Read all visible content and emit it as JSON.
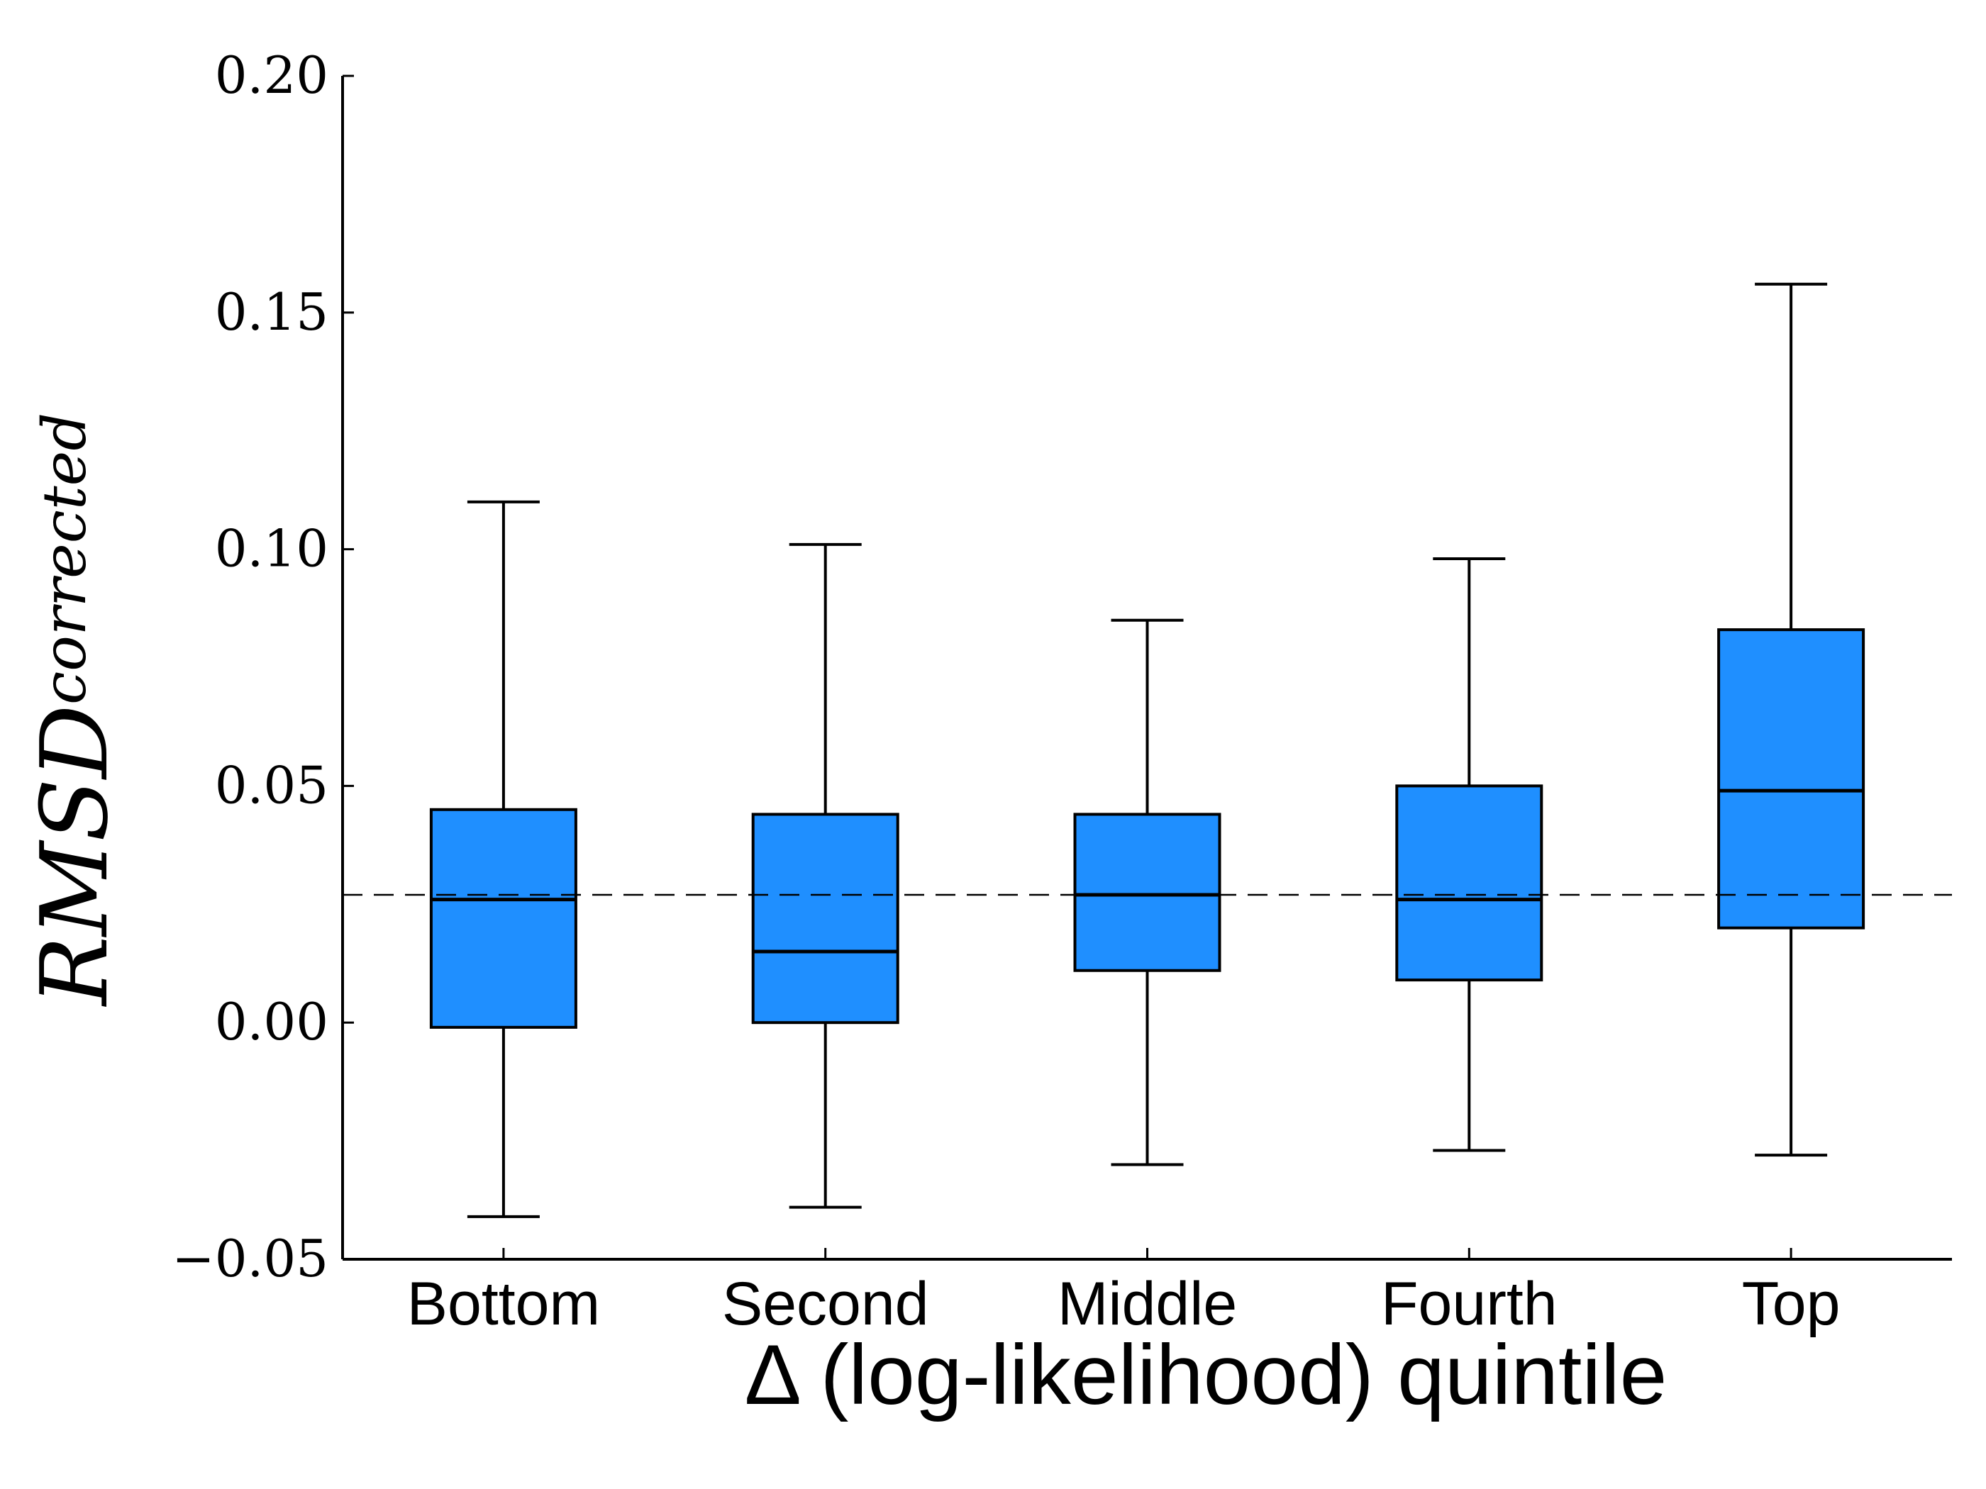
{
  "chart_data": {
    "type": "box",
    "categories": [
      "Bottom",
      "Second",
      "Middle",
      "Fourth",
      "Top"
    ],
    "boxes": [
      {
        "whisker_low": -0.041,
        "q1": -0.001,
        "median": 0.026,
        "q3": 0.045,
        "whisker_high": 0.11
      },
      {
        "whisker_low": -0.039,
        "q1": 0.0,
        "median": 0.015,
        "q3": 0.044,
        "whisker_high": 0.101
      },
      {
        "whisker_low": -0.03,
        "q1": 0.011,
        "median": 0.027,
        "q3": 0.044,
        "whisker_high": 0.085
      },
      {
        "whisker_low": -0.027,
        "q1": 0.009,
        "median": 0.026,
        "q3": 0.05,
        "whisker_high": 0.098
      },
      {
        "whisker_low": -0.028,
        "q1": 0.02,
        "median": 0.049,
        "q3": 0.083,
        "whisker_high": 0.156
      }
    ],
    "reference_line": 0.027,
    "ylim": [
      -0.05,
      0.2
    ],
    "yticks": [
      -0.05,
      0.0,
      0.05,
      0.1,
      0.15,
      0.2
    ],
    "ytick_labels": [
      "−0.05",
      "0.00",
      "0.05",
      "0.10",
      "0.15",
      "0.20"
    ],
    "xlabel": "Δ (log-likelihood) quintile",
    "ylabel_main": "RMSD",
    "ylabel_sub": "corrected",
    "box_color": "#1f8fff",
    "line_color": "#000000"
  }
}
